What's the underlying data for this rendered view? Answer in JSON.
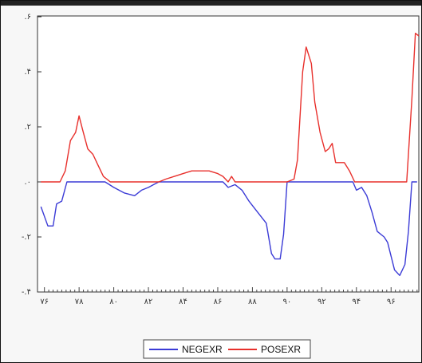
{
  "chart_data": {
    "type": "line",
    "x_tick_labels": [
      "۷۶",
      "۷۸",
      "۸۰",
      "۸۲",
      "۸۴",
      "۸۶",
      "۸۸",
      "۹۰",
      "۹۲",
      "۹۴",
      "۹۶"
    ],
    "x_tick_values": [
      76,
      78,
      80,
      82,
      84,
      86,
      88,
      90,
      92,
      94,
      96
    ],
    "y_tick_labels": [
      ".۶",
      ".۴",
      ".۲",
      ".۰",
      "-.۲",
      "-.۴"
    ],
    "y_tick_values": [
      0.6,
      0.4,
      0.2,
      0.0,
      -0.2,
      -0.4
    ],
    "xlim": [
      75.6,
      97.6
    ],
    "ylim": [
      -0.4,
      0.6
    ],
    "grid": false,
    "legend_position": "bottom",
    "series": [
      {
        "name": "NEGEXR",
        "color": "#3b3bd6",
        "points": [
          [
            75.8,
            -0.09
          ],
          [
            76.2,
            -0.16
          ],
          [
            76.5,
            -0.16
          ],
          [
            76.7,
            -0.08
          ],
          [
            77.0,
            -0.07
          ],
          [
            77.3,
            0.0
          ],
          [
            78.0,
            0.0
          ],
          [
            79.0,
            0.0
          ],
          [
            79.5,
            0.0
          ],
          [
            80.0,
            -0.02
          ],
          [
            80.6,
            -0.04
          ],
          [
            81.2,
            -0.05
          ],
          [
            81.6,
            -0.03
          ],
          [
            82.0,
            -0.02
          ],
          [
            82.3,
            -0.01
          ],
          [
            82.6,
            0.0
          ],
          [
            83.0,
            0.0
          ],
          [
            85.0,
            0.0
          ],
          [
            86.3,
            0.0
          ],
          [
            86.6,
            -0.02
          ],
          [
            87.0,
            -0.01
          ],
          [
            87.4,
            -0.03
          ],
          [
            87.8,
            -0.07
          ],
          [
            88.3,
            -0.11
          ],
          [
            88.8,
            -0.15
          ],
          [
            89.1,
            -0.26
          ],
          [
            89.3,
            -0.28
          ],
          [
            89.6,
            -0.28
          ],
          [
            89.8,
            -0.19
          ],
          [
            90.0,
            0.0
          ],
          [
            90.5,
            0.0
          ],
          [
            91.0,
            0.0
          ],
          [
            92.0,
            0.0
          ],
          [
            93.0,
            0.0
          ],
          [
            93.8,
            0.0
          ],
          [
            94.0,
            -0.03
          ],
          [
            94.3,
            -0.02
          ],
          [
            94.6,
            -0.05
          ],
          [
            94.9,
            -0.11
          ],
          [
            95.2,
            -0.18
          ],
          [
            95.6,
            -0.2
          ],
          [
            95.8,
            -0.22
          ],
          [
            96.2,
            -0.32
          ],
          [
            96.5,
            -0.34
          ],
          [
            96.8,
            -0.3
          ],
          [
            97.0,
            -0.18
          ],
          [
            97.2,
            0.0
          ],
          [
            97.5,
            0.0
          ]
        ]
      },
      {
        "name": "POSEXR",
        "color": "#e8302c",
        "points": [
          [
            75.8,
            0.0
          ],
          [
            76.9,
            0.0
          ],
          [
            77.2,
            0.04
          ],
          [
            77.5,
            0.15
          ],
          [
            77.8,
            0.18
          ],
          [
            78.0,
            0.24
          ],
          [
            78.2,
            0.19
          ],
          [
            78.5,
            0.12
          ],
          [
            78.8,
            0.1
          ],
          [
            79.1,
            0.06
          ],
          [
            79.4,
            0.02
          ],
          [
            79.8,
            0.0
          ],
          [
            82.6,
            0.0
          ],
          [
            83.0,
            0.01
          ],
          [
            83.5,
            0.02
          ],
          [
            84.0,
            0.03
          ],
          [
            84.5,
            0.04
          ],
          [
            85.0,
            0.04
          ],
          [
            85.5,
            0.04
          ],
          [
            86.0,
            0.03
          ],
          [
            86.3,
            0.02
          ],
          [
            86.6,
            0.0
          ],
          [
            86.8,
            0.02
          ],
          [
            87.0,
            0.0
          ],
          [
            90.0,
            0.0
          ],
          [
            90.4,
            0.01
          ],
          [
            90.6,
            0.08
          ],
          [
            90.9,
            0.4
          ],
          [
            91.1,
            0.49
          ],
          [
            91.4,
            0.43
          ],
          [
            91.6,
            0.29
          ],
          [
            91.9,
            0.18
          ],
          [
            92.2,
            0.11
          ],
          [
            92.4,
            0.12
          ],
          [
            92.6,
            0.14
          ],
          [
            92.8,
            0.07
          ],
          [
            93.0,
            0.07
          ],
          [
            93.3,
            0.07
          ],
          [
            93.6,
            0.04
          ],
          [
            93.9,
            0.0
          ],
          [
            96.9,
            0.0
          ],
          [
            97.2,
            0.3
          ],
          [
            97.4,
            0.54
          ],
          [
            97.6,
            0.53
          ]
        ]
      }
    ]
  }
}
